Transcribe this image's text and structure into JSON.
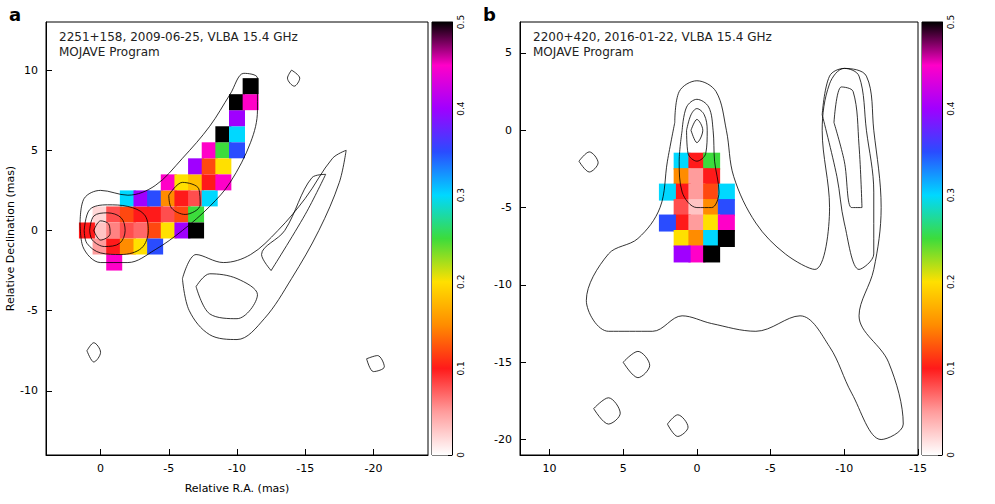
{
  "chart_data": [
    {
      "type": "scatter",
      "label": "a",
      "title": "2251+158, 2009-06-25, VLBA 15.4 GHz",
      "subtitle": "MOJAVE Program",
      "xlabel": "Relative R.A. (mas)",
      "ylabel": "Relative Declination (mas)",
      "xlim": [
        4,
        -24
      ],
      "xticks": [
        0,
        -5,
        -10,
        -15,
        -20
      ],
      "ylim": [
        -14,
        13
      ],
      "yticks": [
        -10,
        -5,
        0,
        5,
        10
      ],
      "grid": false,
      "points": [
        [
          0,
          1,
          0.02
        ],
        [
          0,
          0,
          0.03
        ],
        [
          0,
          -1,
          0.05
        ],
        [
          1,
          0,
          0.1
        ],
        [
          -1,
          1,
          0.08
        ],
        [
          -1,
          0,
          0.06
        ],
        [
          -1,
          -1,
          0.1
        ],
        [
          -1,
          -2,
          0.45
        ],
        [
          -2,
          1,
          0.12
        ],
        [
          -2,
          0,
          0.08
        ],
        [
          -2,
          -1,
          0.15
        ],
        [
          -2,
          2,
          0.3
        ],
        [
          -3,
          1,
          0.1
        ],
        [
          -3,
          0,
          0.07
        ],
        [
          -3,
          -1,
          0.2
        ],
        [
          -3,
          2,
          0.4
        ],
        [
          -4,
          1,
          0.1
        ],
        [
          -4,
          0,
          0.12
        ],
        [
          -4,
          -1,
          0.35
        ],
        [
          -4,
          2,
          0.35
        ],
        [
          -5,
          2,
          0.15
        ],
        [
          -5,
          1,
          0.08
        ],
        [
          -5,
          0,
          0.2
        ],
        [
          -5,
          3,
          0.45
        ],
        [
          -6,
          3,
          0.2
        ],
        [
          -6,
          2,
          0.1
        ],
        [
          -6,
          1,
          0.12
        ],
        [
          -6,
          0,
          0.4
        ],
        [
          -7,
          3,
          0.18
        ],
        [
          -7,
          2,
          0.08
        ],
        [
          -7,
          1,
          0.25
        ],
        [
          -7,
          0,
          0.5
        ],
        [
          -7,
          4,
          0.4
        ],
        [
          -8,
          4,
          0.12
        ],
        [
          -8,
          3,
          0.1
        ],
        [
          -8,
          2,
          0.3
        ],
        [
          -8,
          5,
          0.45
        ],
        [
          -9,
          5,
          0.25
        ],
        [
          -9,
          4,
          0.2
        ],
        [
          -9,
          3,
          0.45
        ],
        [
          -9,
          6,
          0.5
        ],
        [
          -10,
          6,
          0.3
        ],
        [
          -10,
          5,
          0.35
        ],
        [
          -10,
          7,
          0.4
        ],
        [
          -10,
          8,
          0.5
        ],
        [
          -11,
          8,
          0.45
        ],
        [
          -11,
          9,
          0.5
        ]
      ],
      "contours": [
        [
          [
            1.5,
            0.5
          ],
          [
            1.2,
            2
          ],
          [
            0,
            2.5
          ],
          [
            -2,
            2.2
          ],
          [
            -4,
            2.8
          ],
          [
            -6,
            4.5
          ],
          [
            -8,
            6.5
          ],
          [
            -9.5,
            8.5
          ],
          [
            -10.5,
            9.8
          ],
          [
            -11.5,
            9.5
          ],
          [
            -11.5,
            7.5
          ],
          [
            -11,
            5.5
          ],
          [
            -9.5,
            3
          ],
          [
            -8,
            1.5
          ],
          [
            -6,
            0
          ],
          [
            -4,
            -1.2
          ],
          [
            -2,
            -2
          ],
          [
            0,
            -2
          ],
          [
            1.3,
            -1
          ],
          [
            1.5,
            0.5
          ]
        ],
        [
          [
            1.2,
            0
          ],
          [
            0.8,
            1.3
          ],
          [
            -0.5,
            1.6
          ],
          [
            -2,
            1.5
          ],
          [
            -3.2,
            1
          ],
          [
            -3.5,
            0
          ],
          [
            -3,
            -1.1
          ],
          [
            -1.5,
            -1.5
          ],
          [
            0,
            -1.4
          ],
          [
            1,
            -0.8
          ],
          [
            1.2,
            0
          ]
        ],
        [
          [
            0.8,
            0
          ],
          [
            0.5,
            0.9
          ],
          [
            -0.5,
            1.1
          ],
          [
            -1.5,
            0.8
          ],
          [
            -1.8,
            0
          ],
          [
            -1.4,
            -0.8
          ],
          [
            -0.3,
            -1
          ],
          [
            0.6,
            -0.6
          ],
          [
            0.8,
            0
          ]
        ],
        [
          [
            0.5,
            0
          ],
          [
            0,
            0.6
          ],
          [
            -0.6,
            0.4
          ],
          [
            -0.7,
            -0.2
          ],
          [
            0,
            -0.6
          ],
          [
            0.5,
            0
          ]
        ],
        [
          [
            -5,
            2.2
          ],
          [
            -6,
            3
          ],
          [
            -7.2,
            2.6
          ],
          [
            -7.3,
            1.6
          ],
          [
            -6.2,
            1
          ],
          [
            -5.2,
            1.4
          ],
          [
            -5,
            2.2
          ]
        ],
        [
          [
            -19.5,
            -8
          ],
          [
            -20,
            -8.8
          ],
          [
            -20.8,
            -8.5
          ],
          [
            -20.3,
            -7.8
          ],
          [
            -19.5,
            -8
          ]
        ],
        [
          [
            1,
            -7.5
          ],
          [
            0.5,
            -8.2
          ],
          [
            0,
            -7.6
          ],
          [
            0.5,
            -7
          ],
          [
            1,
            -7.5
          ]
        ],
        [
          [
            -14,
            10
          ],
          [
            -14.6,
            9.5
          ],
          [
            -14.2,
            9
          ],
          [
            -13.7,
            9.5
          ],
          [
            -14,
            10
          ]
        ]
      ],
      "pol_contours": [
        [
          [
            -6,
            -3
          ],
          [
            -6.5,
            -5
          ],
          [
            -8,
            -6.5
          ],
          [
            -10,
            -6.8
          ],
          [
            -12,
            -5.5
          ],
          [
            -14,
            -3
          ],
          [
            -16,
            0
          ],
          [
            -17.5,
            3
          ],
          [
            -18,
            5
          ],
          [
            -17,
            4.5
          ],
          [
            -15,
            2
          ],
          [
            -13,
            0
          ],
          [
            -11,
            -1.5
          ],
          [
            -9,
            -2
          ],
          [
            -7,
            -1.5
          ],
          [
            -6,
            -3
          ]
        ],
        [
          [
            -7,
            -3.5
          ],
          [
            -8,
            -5.2
          ],
          [
            -10,
            -5.5
          ],
          [
            -11.5,
            -4
          ],
          [
            -10,
            -3
          ],
          [
            -8,
            -2.7
          ],
          [
            -7,
            -3.5
          ]
        ],
        [
          [
            -12.5,
            -2.5
          ],
          [
            -15,
            1
          ],
          [
            -16.5,
            3.5
          ],
          [
            -15.5,
            3.3
          ],
          [
            -13.5,
            0
          ],
          [
            -11.8,
            -1.5
          ],
          [
            -12.5,
            -2.5
          ]
        ]
      ],
      "colorbar": {
        "range": [
          0,
          0.5
        ],
        "ticks": [
          0,
          0.1,
          0.2,
          0.3,
          0.4,
          0.5
        ]
      }
    },
    {
      "type": "scatter",
      "label": "b",
      "title": "2200+420, 2016-01-22, VLBA 15.4 GHz",
      "subtitle": "MOJAVE Program",
      "xlim": [
        12,
        -15
      ],
      "xticks": [
        10,
        5,
        0,
        -5,
        -10,
        -15
      ],
      "ylim": [
        -21,
        7
      ],
      "yticks": [
        -20,
        -15,
        -10,
        -5,
        0,
        5
      ],
      "grid": false,
      "points": [
        [
          1,
          -2,
          0.3
        ],
        [
          0,
          -2,
          0.1
        ],
        [
          -1,
          -2,
          0.25
        ],
        [
          1,
          -3,
          0.15
        ],
        [
          0,
          -3,
          0.05
        ],
        [
          -1,
          -3,
          0.1
        ],
        [
          1,
          -4,
          0.1
        ],
        [
          0,
          -4,
          0.05
        ],
        [
          -1,
          -4,
          0.12
        ],
        [
          -2,
          -4,
          0.3
        ],
        [
          2,
          -4,
          0.3
        ],
        [
          1,
          -5,
          0.08
        ],
        [
          0,
          -5,
          0.03
        ],
        [
          -1,
          -5,
          0.15
        ],
        [
          -2,
          -5,
          0.35
        ],
        [
          1,
          -6,
          0.1
        ],
        [
          0,
          -6,
          0.05
        ],
        [
          -1,
          -6,
          0.2
        ],
        [
          -2,
          -6,
          0.45
        ],
        [
          2,
          -6,
          0.35
        ],
        [
          1,
          -7,
          0.2
        ],
        [
          0,
          -7,
          0.15
        ],
        [
          -1,
          -7,
          0.3
        ],
        [
          -2,
          -7,
          0.5
        ],
        [
          0,
          -8,
          0.45
        ],
        [
          1,
          -8,
          0.4
        ],
        [
          -1,
          -8,
          0.5
        ]
      ],
      "contours": [
        [
          [
            1.5,
            0.5
          ],
          [
            1.2,
            2.5
          ],
          [
            0,
            3.2
          ],
          [
            -1.3,
            2.5
          ],
          [
            -2,
            0
          ],
          [
            -2.5,
            -3
          ],
          [
            -4,
            -6
          ],
          [
            -6,
            -8
          ],
          [
            -8,
            -9
          ],
          [
            -9,
            -5
          ],
          [
            -8.5,
            0
          ],
          [
            -9,
            3
          ],
          [
            -10,
            4
          ],
          [
            -11.5,
            3.5
          ],
          [
            -12,
            0
          ],
          [
            -12.5,
            -5
          ],
          [
            -12,
            -9
          ],
          [
            -11,
            -12
          ],
          [
            -13,
            -15
          ],
          [
            -14,
            -19
          ],
          [
            -12.5,
            -20
          ],
          [
            -10.5,
            -17
          ],
          [
            -9,
            -14
          ],
          [
            -7,
            -12
          ],
          [
            -4,
            -13
          ],
          [
            -1,
            -12.5
          ],
          [
            1,
            -12
          ],
          [
            3,
            -13
          ],
          [
            6,
            -13
          ],
          [
            7.5,
            -11
          ],
          [
            6,
            -8
          ],
          [
            4,
            -7
          ],
          [
            2.5,
            -5
          ],
          [
            2,
            -2
          ],
          [
            1.5,
            0.5
          ]
        ],
        [
          [
            1,
            0
          ],
          [
            0.7,
            1.5
          ],
          [
            0,
            2
          ],
          [
            -0.8,
            1.5
          ],
          [
            -1.1,
            0
          ],
          [
            -1.2,
            -2
          ],
          [
            -1.5,
            -4
          ],
          [
            -1,
            -5
          ],
          [
            0,
            -5
          ],
          [
            1,
            -4
          ],
          [
            1.2,
            -2
          ],
          [
            1,
            0
          ]
        ],
        [
          [
            0.7,
            0
          ],
          [
            0.4,
            1
          ],
          [
            0,
            1.4
          ],
          [
            -0.5,
            1
          ],
          [
            -0.7,
            0
          ],
          [
            -0.6,
            -1.5
          ],
          [
            0,
            -2
          ],
          [
            0.6,
            -1.5
          ],
          [
            0.7,
            0
          ]
        ],
        [
          [
            0.4,
            0
          ],
          [
            0,
            0.7
          ],
          [
            -0.4,
            0
          ],
          [
            0,
            -0.8
          ],
          [
            0.4,
            0
          ]
        ],
        [
          [
            5,
            -15
          ],
          [
            4,
            -16
          ],
          [
            3.2,
            -15.2
          ],
          [
            4,
            -14.3
          ],
          [
            5,
            -15
          ]
        ],
        [
          [
            7,
            -18
          ],
          [
            6,
            -19
          ],
          [
            5.2,
            -18.3
          ],
          [
            6,
            -17.3
          ],
          [
            7,
            -18
          ]
        ],
        [
          [
            2,
            -19
          ],
          [
            1.3,
            -19.8
          ],
          [
            0.6,
            -19.2
          ],
          [
            1.3,
            -18.4
          ],
          [
            2,
            -19
          ]
        ],
        [
          [
            8,
            -2
          ],
          [
            7.3,
            -2.7
          ],
          [
            6.7,
            -2.1
          ],
          [
            7.3,
            -1.4
          ],
          [
            8,
            -2
          ]
        ]
      ],
      "pol_contours": [
        [
          [
            -8.5,
            1
          ],
          [
            -9,
            3.5
          ],
          [
            -10,
            4
          ],
          [
            -11,
            3.5
          ],
          [
            -11.5,
            0
          ],
          [
            -12,
            -4
          ],
          [
            -12,
            -8
          ],
          [
            -11,
            -9
          ],
          [
            -10,
            -6
          ],
          [
            -9.5,
            -3
          ],
          [
            -8.5,
            1
          ]
        ],
        [
          [
            -9.3,
            0.5
          ],
          [
            -9.8,
            2.8
          ],
          [
            -10.6,
            2.5
          ],
          [
            -11,
            -1
          ],
          [
            -11.2,
            -5
          ],
          [
            -10.5,
            -5
          ],
          [
            -10,
            -2
          ],
          [
            -9.3,
            0.5
          ]
        ]
      ],
      "colorbar": {
        "range": [
          0,
          0.5
        ],
        "ticks": [
          0,
          0.1,
          0.2,
          0.3,
          0.4,
          0.5
        ]
      }
    }
  ]
}
